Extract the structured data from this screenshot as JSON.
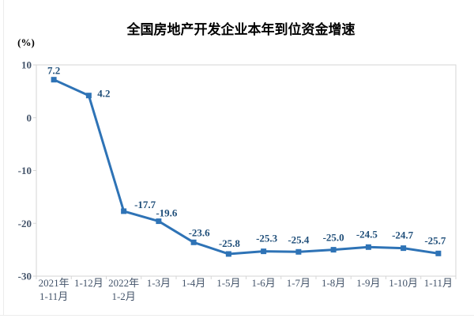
{
  "chart_data": {
    "type": "line",
    "title": "全国房地产开发企业本年到位资金增速",
    "y_unit_label": "(%)",
    "categories": [
      [
        "2021年",
        "1-11月"
      ],
      [
        "1-12月"
      ],
      [
        "2022年",
        "1-2月"
      ],
      [
        "1-3月"
      ],
      [
        "1-4月"
      ],
      [
        "1-5月"
      ],
      [
        "1-6月"
      ],
      [
        "1-7月"
      ],
      [
        "1-8月"
      ],
      [
        "1-9月"
      ],
      [
        "1-10月"
      ],
      [
        "1-11月"
      ]
    ],
    "values": [
      7.2,
      4.2,
      -17.7,
      -19.6,
      -23.6,
      -25.8,
      -25.3,
      -25.4,
      -25.0,
      -24.5,
      -24.7,
      -25.7
    ],
    "value_labels": [
      "7.2",
      "4.2",
      "-17.7",
      "-19.6",
      "-23.6",
      "-25.8",
      "-25.3",
      "-25.4",
      "-25.0",
      "-24.5",
      "-24.7",
      "-25.7"
    ],
    "y_ticks": [
      10,
      0,
      -10,
      -20,
      -30
    ],
    "ylim": [
      -30,
      10
    ],
    "grid": false,
    "legend": "none",
    "marker": "square",
    "colors": {
      "line": "#2e73b6",
      "marker": "#2e73b6",
      "data_label": "#1f4e79",
      "axis_label": "#44546a",
      "title": "#333333",
      "axis_line": "#d6d6d6",
      "page_divider": "#ececec"
    }
  }
}
